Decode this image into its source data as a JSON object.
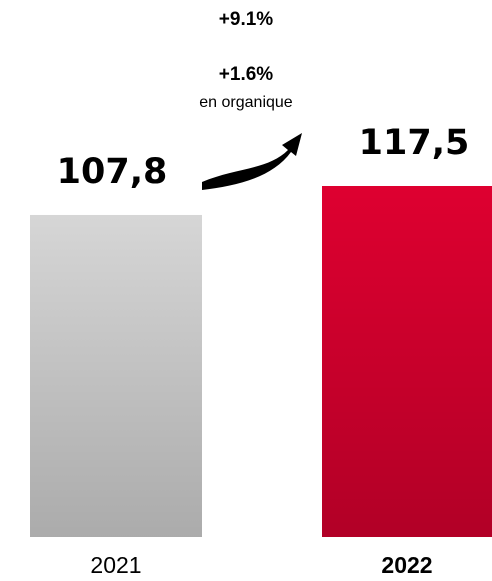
{
  "chart_data": {
    "type": "bar",
    "categories": [
      "2021",
      "2022"
    ],
    "values": [
      107.8,
      117.5
    ],
    "value_labels": [
      "107,8",
      "117,5"
    ],
    "colors": [
      "#d6d6d6",
      "#de0030"
    ],
    "annotations": [
      "+9.1%",
      "+1.6%",
      "en organique"
    ]
  }
}
